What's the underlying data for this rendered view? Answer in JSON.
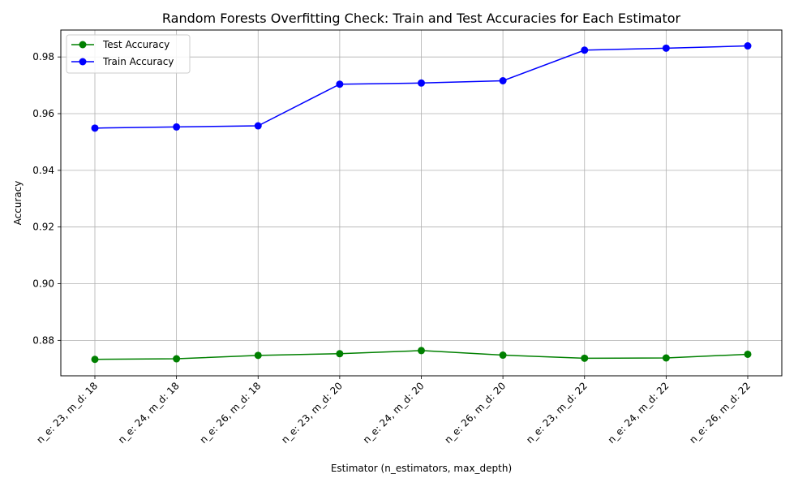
{
  "chart_data": {
    "type": "line",
    "title": "Random Forests Overfitting Check: Train and Test Accuracies for Each Estimator",
    "xlabel": "Estimator (n_estimators, max_depth)",
    "ylabel": "Accuracy",
    "categories": [
      "n_e: 23, m_d: 18",
      "n_e: 24, m_d: 18",
      "n_e: 26, m_d: 18",
      "n_e: 23, m_d: 20",
      "n_e: 24, m_d: 20",
      "n_e: 26, m_d: 20",
      "n_e: 23, m_d: 22",
      "n_e: 24, m_d: 22",
      "n_e: 26, m_d: 22"
    ],
    "ylim": [
      0.8675,
      0.9895
    ],
    "yticks": [
      0.88,
      0.9,
      0.92,
      0.94,
      0.96,
      0.98
    ],
    "ytick_labels": [
      "0.88",
      "0.90",
      "0.92",
      "0.94",
      "0.96",
      "0.98"
    ],
    "grid": true,
    "legend_position": "top-left",
    "series": [
      {
        "name": "Test Accuracy",
        "color": "#008000",
        "values": [
          0.8733,
          0.8735,
          0.8747,
          0.8753,
          0.8764,
          0.8748,
          0.8737,
          0.8738,
          0.8751
        ]
      },
      {
        "name": "Train Accuracy",
        "color": "#0000ff",
        "values": [
          0.9549,
          0.9553,
          0.9557,
          0.9704,
          0.9708,
          0.9716,
          0.9824,
          0.9831,
          0.9839
        ]
      }
    ]
  }
}
